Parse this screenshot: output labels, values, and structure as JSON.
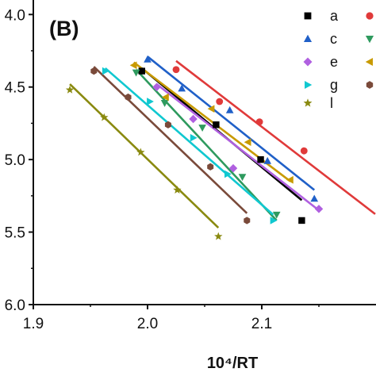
{
  "chart_data": {
    "type": "scatter",
    "panel_label": "(B)",
    "title": "",
    "xlabel": "10⁴/RT",
    "ylabel": "",
    "xlim": [
      1.9,
      2.2
    ],
    "ylim": [
      -6.0,
      -3.9
    ],
    "x_ticks": [
      1.9,
      2.0,
      2.1
    ],
    "x_tick_labels": [
      "1.9",
      "2.0",
      "2.1"
    ],
    "y_ticks": [
      -4.0,
      -4.5,
      -5.0,
      -5.5,
      -6.0
    ],
    "y_tick_labels": [
      "4.0",
      "4.5",
      "5.0",
      "5.5",
      "6.0"
    ],
    "grid": false,
    "legend_position": "top-right",
    "series": [
      {
        "name": "a",
        "color": "#000000",
        "marker": "square",
        "points": [
          [
            1.995,
            -4.39
          ],
          [
            2.06,
            -4.76
          ],
          [
            2.099,
            -5.0
          ],
          [
            2.135,
            -5.42
          ]
        ],
        "fit": [
          [
            1.995,
            -4.37
          ],
          [
            2.135,
            -5.28
          ]
        ]
      },
      {
        "name": "",
        "color": "#e03a3a",
        "marker": "circle",
        "points": [
          [
            2.025,
            -4.38
          ],
          [
            2.063,
            -4.6
          ],
          [
            2.098,
            -4.74
          ],
          [
            2.137,
            -4.94
          ]
        ],
        "fit": [
          [
            2.025,
            -4.32
          ],
          [
            2.2,
            -5.38
          ]
        ]
      },
      {
        "name": "c",
        "color": "#2060c8",
        "marker": "triangle-up",
        "points": [
          [
            2.0,
            -4.31
          ],
          [
            2.03,
            -4.51
          ],
          [
            2.072,
            -4.66
          ],
          [
            2.105,
            -5.01
          ],
          [
            2.146,
            -5.27
          ]
        ],
        "fit": [
          [
            2.0,
            -4.29
          ],
          [
            2.146,
            -5.21
          ]
        ]
      },
      {
        "name": "",
        "color": "#2e9a5e",
        "marker": "triangle-down",
        "points": [
          [
            1.99,
            -4.4
          ],
          [
            2.015,
            -4.61
          ],
          [
            2.048,
            -4.78
          ],
          [
            2.083,
            -5.12
          ],
          [
            2.113,
            -5.38
          ]
        ],
        "fit": [
          [
            1.99,
            -4.38
          ],
          [
            2.113,
            -5.42
          ]
        ]
      },
      {
        "name": "e",
        "color": "#b060e0",
        "marker": "diamond",
        "points": [
          [
            2.008,
            -4.5
          ],
          [
            2.04,
            -4.72
          ],
          [
            2.075,
            -5.06
          ],
          [
            2.15,
            -5.34
          ]
        ],
        "fit": [
          [
            2.008,
            -4.48
          ],
          [
            2.15,
            -5.35
          ]
        ]
      },
      {
        "name": "",
        "color": "#c89a00",
        "marker": "triangle-left",
        "points": [
          [
            1.988,
            -4.35
          ],
          [
            2.016,
            -4.57
          ],
          [
            2.056,
            -4.65
          ],
          [
            2.088,
            -4.88
          ],
          [
            2.125,
            -5.14
          ]
        ],
        "fit": [
          [
            1.988,
            -4.33
          ],
          [
            2.125,
            -5.15
          ]
        ]
      },
      {
        "name": "g",
        "color": "#10c8d0",
        "marker": "triangle-right",
        "points": [
          [
            1.963,
            -4.39
          ],
          [
            2.002,
            -4.6
          ],
          [
            2.04,
            -4.85
          ],
          [
            2.07,
            -5.1
          ],
          [
            2.11,
            -5.42
          ]
        ],
        "fit": [
          [
            1.963,
            -4.37
          ],
          [
            2.11,
            -5.38
          ]
        ]
      },
      {
        "name": "",
        "color": "#7a4a3a",
        "marker": "hexagon",
        "points": [
          [
            1.953,
            -4.39
          ],
          [
            1.983,
            -4.57
          ],
          [
            2.018,
            -4.76
          ],
          [
            2.055,
            -5.05
          ],
          [
            2.087,
            -5.42
          ]
        ],
        "fit": [
          [
            1.953,
            -4.36
          ],
          [
            2.087,
            -5.37
          ]
        ]
      },
      {
        "name": "l",
        "color": "#8a8a10",
        "marker": "star",
        "points": [
          [
            1.932,
            -4.52
          ],
          [
            1.962,
            -4.71
          ],
          [
            1.994,
            -4.95
          ],
          [
            2.026,
            -5.21
          ],
          [
            2.062,
            -5.53
          ]
        ],
        "fit": [
          [
            1.932,
            -4.48
          ],
          [
            2.062,
            -5.47
          ]
        ]
      }
    ]
  }
}
